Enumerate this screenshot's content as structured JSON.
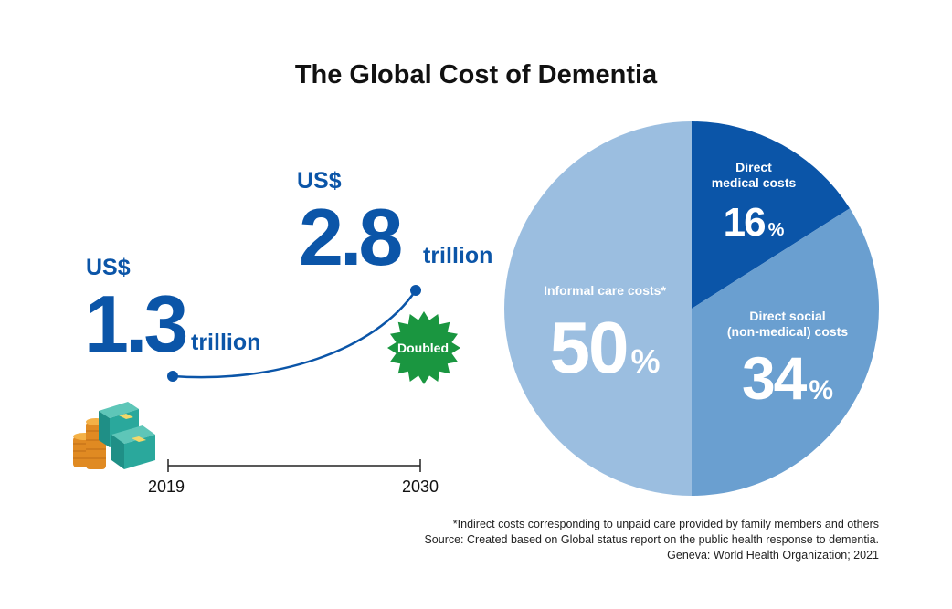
{
  "title": "The Global Cost of Dementia",
  "colors": {
    "brand_blue": "#0b55a8",
    "badge_green": "#1a9640",
    "pie_informal": "#9bbee0",
    "pie_medical": "#0b55a8",
    "pie_social": "#6a9fd0",
    "text_dark": "#111111"
  },
  "growth": {
    "start": {
      "currency": "US$",
      "amount": "1.3",
      "unit": "trillion",
      "year": "2019"
    },
    "end": {
      "currency": "US$",
      "amount": "2.8",
      "unit": "trillion",
      "year": "2030"
    },
    "badge": "Doubled",
    "icon": "money-stack-icon"
  },
  "chart_data": [
    {
      "type": "line",
      "x": [
        2019,
        2030
      ],
      "values": [
        1.3,
        2.8
      ],
      "title": "",
      "xlabel": "",
      "ylabel": ""
    },
    {
      "type": "pie",
      "categories": [
        "Direct medical costs",
        "Direct social (non-medical) costs",
        "Informal care costs*"
      ],
      "values": [
        16,
        34,
        50
      ],
      "labels": [
        {
          "lines": [
            "Direct",
            "medical costs"
          ],
          "number": "16",
          "unit": "%"
        },
        {
          "lines": [
            "Direct social",
            "(non-medical) costs"
          ],
          "number": "34",
          "unit": "%"
        },
        {
          "lines": [
            "Informal care costs*"
          ],
          "number": "50",
          "unit": "%"
        }
      ],
      "colors": [
        "#0b55a8",
        "#6a9fd0",
        "#9bbee0"
      ]
    }
  ],
  "footnote": [
    "*Indirect costs corresponding to unpaid care provided by family members and others",
    "Source: Created based on Global status report on the public health response to dementia.",
    "Geneva: World Health Organization; 2021"
  ]
}
